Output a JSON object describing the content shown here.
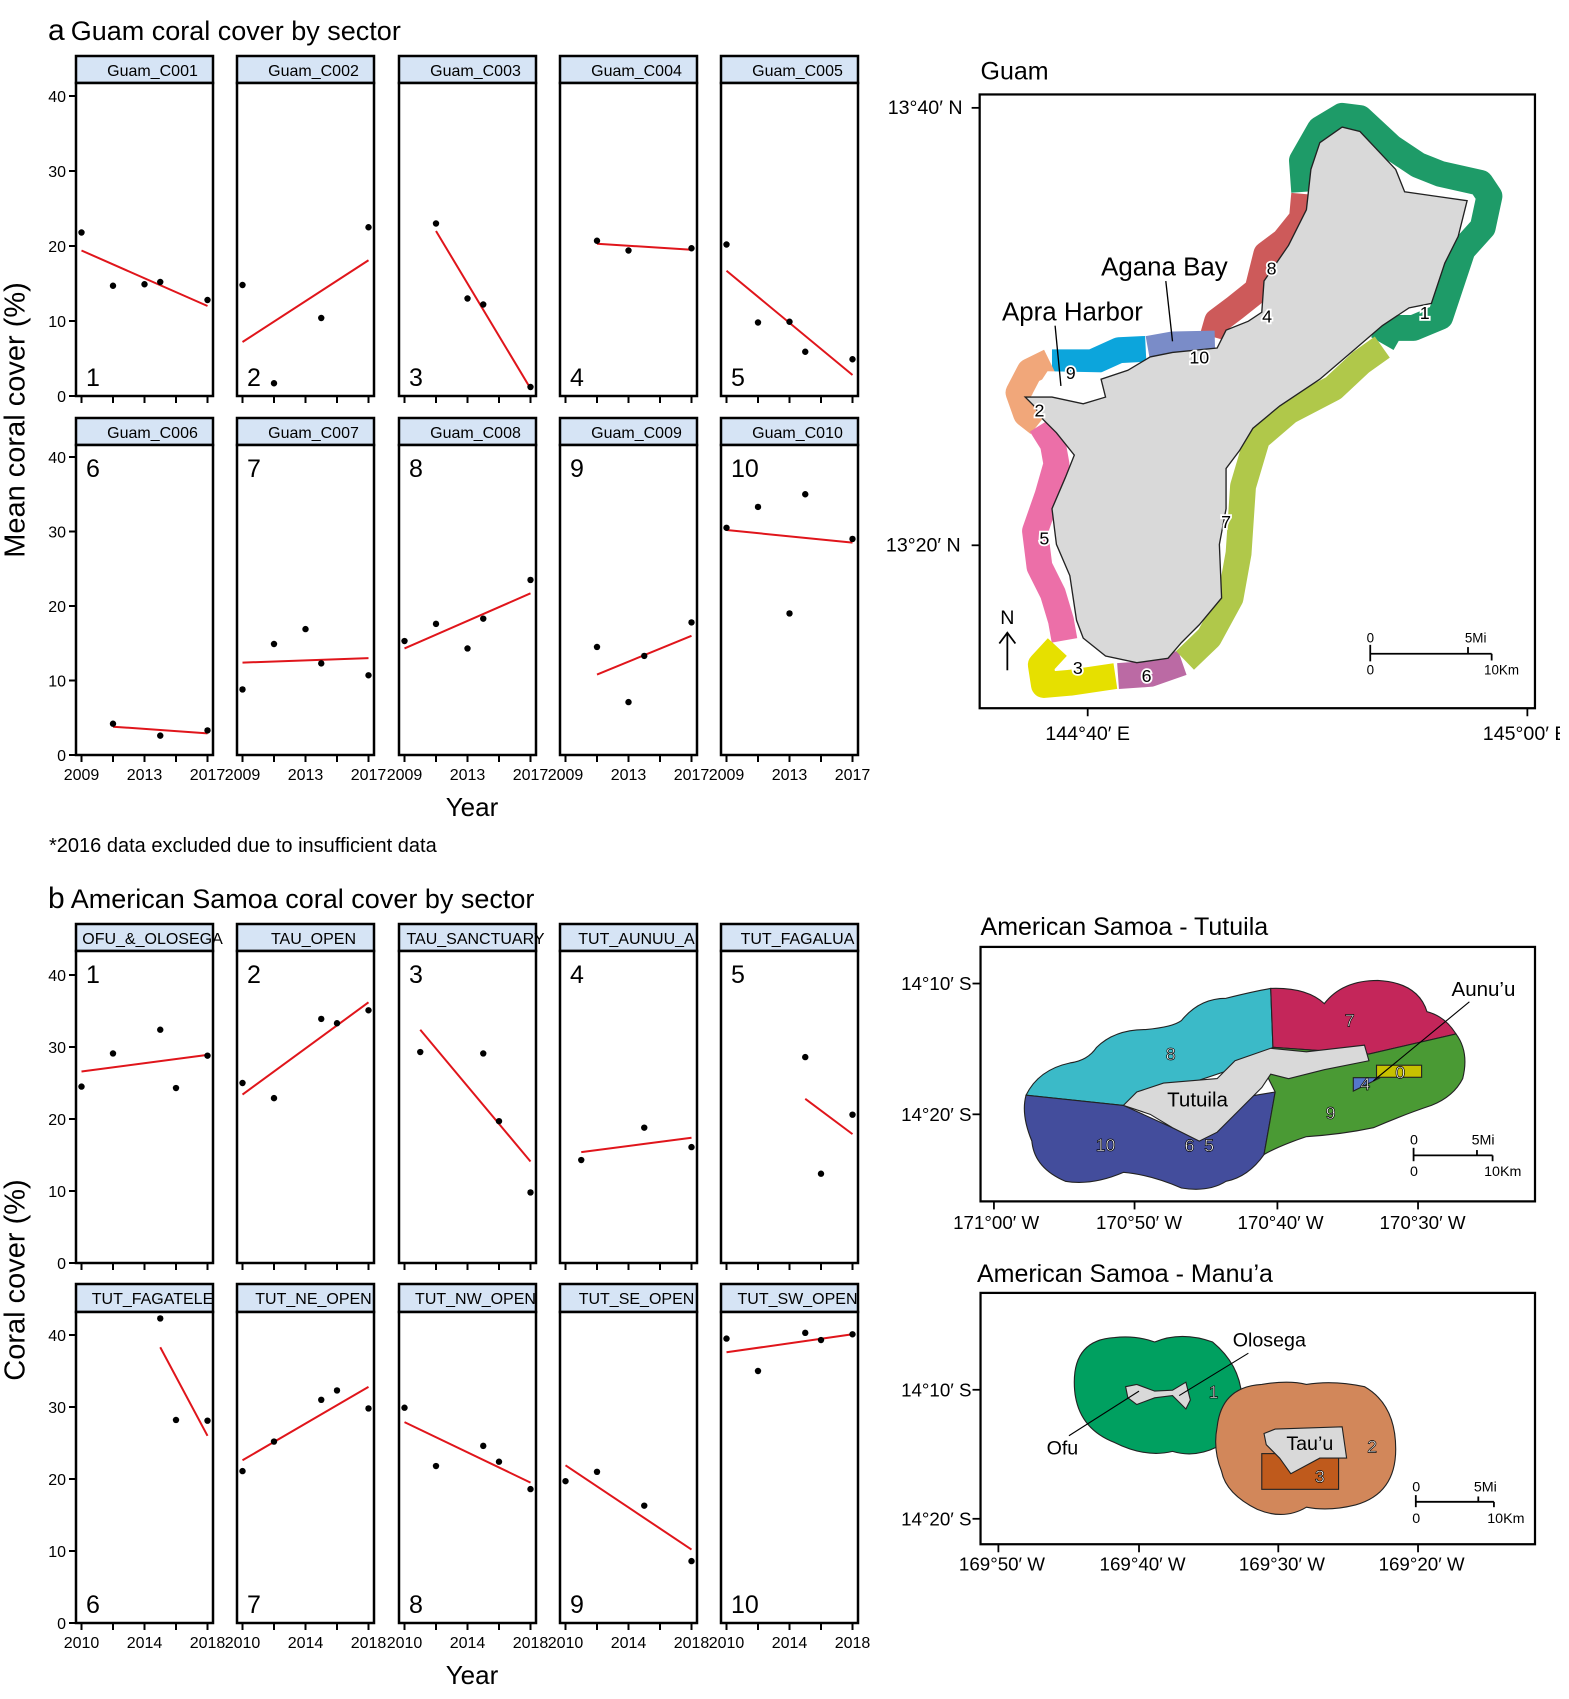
{
  "panel_a": {
    "letter": "a",
    "title": "Guam coral cover by sector",
    "ylabel": "Mean coral cover (%)",
    "xlabel": "Year",
    "footnote": "*2016 data excluded due to insufficient data"
  },
  "panel_b": {
    "letter": "b",
    "title": "American Samoa coral cover by sector",
    "ylabel": "Coral cover (%)",
    "xlabel": "Year"
  },
  "colors": {
    "strip": "#d6e4f5",
    "trend": "#e0151b",
    "point": "#000000"
  },
  "chart_data": [
    {
      "type": "scatter",
      "title": "Guam coral cover by sector",
      "xlabel": "Year",
      "ylabel": "Mean coral cover (%)",
      "xlim": [
        2009,
        2017
      ],
      "ylim": [
        0,
        40
      ],
      "xticks": [
        2009,
        2011,
        2013,
        2015,
        2017
      ],
      "xtick_labels": [
        "2009",
        "2013",
        "2017"
      ],
      "yticks": [
        0,
        10,
        20,
        30,
        40
      ],
      "panels": [
        {
          "strip": "Guam_C001",
          "label": "1",
          "x": [
            2009,
            2011,
            2013,
            2014,
            2017
          ],
          "y": [
            21.8,
            14.7,
            14.9,
            15.2,
            12.8
          ],
          "trend": {
            "x": [
              2009,
              2017
            ],
            "y": [
              19.4,
              12.0
            ]
          }
        },
        {
          "strip": "Guam_C002",
          "label": "2",
          "x": [
            2009,
            2011,
            2014,
            2017
          ],
          "y": [
            14.8,
            1.7,
            10.4,
            22.5
          ],
          "trend": {
            "x": [
              2009,
              2017
            ],
            "y": [
              7.2,
              18.1
            ]
          }
        },
        {
          "strip": "Guam_C003",
          "label": "3",
          "x": [
            2011,
            2013,
            2014,
            2017
          ],
          "y": [
            23.0,
            13.0,
            12.2,
            1.2
          ],
          "trend": {
            "x": [
              2011,
              2017
            ],
            "y": [
              22.0,
              1.0
            ]
          }
        },
        {
          "strip": "Guam_C004",
          "label": "4",
          "x": [
            2011,
            2013,
            2017
          ],
          "y": [
            20.7,
            19.4,
            19.7
          ],
          "trend": {
            "x": [
              2011,
              2017
            ],
            "y": [
              20.3,
              19.5
            ]
          }
        },
        {
          "strip": "Guam_C005",
          "label": "5",
          "x": [
            2009,
            2011,
            2013,
            2014,
            2017
          ],
          "y": [
            20.2,
            9.8,
            9.9,
            5.9,
            4.9
          ],
          "trend": {
            "x": [
              2009,
              2017
            ],
            "y": [
              16.7,
              2.8
            ]
          }
        },
        {
          "strip": "Guam_C006",
          "label": "6",
          "x": [
            2011,
            2014,
            2017
          ],
          "y": [
            4.2,
            2.6,
            3.3
          ],
          "trend": {
            "x": [
              2011,
              2017
            ],
            "y": [
              3.8,
              2.9
            ]
          }
        },
        {
          "strip": "Guam_C007",
          "label": "7",
          "x": [
            2009,
            2011,
            2013,
            2014,
            2017
          ],
          "y": [
            8.8,
            14.9,
            16.9,
            12.3,
            10.7
          ],
          "trend": {
            "x": [
              2009,
              2017
            ],
            "y": [
              12.4,
              13.0
            ]
          }
        },
        {
          "strip": "Guam_C008",
          "label": "8",
          "x": [
            2009,
            2011,
            2013,
            2014,
            2017
          ],
          "y": [
            15.3,
            17.6,
            14.3,
            18.3,
            23.5
          ],
          "trend": {
            "x": [
              2009,
              2017
            ],
            "y": [
              14.3,
              21.7
            ]
          }
        },
        {
          "strip": "Guam_C009",
          "label": "9",
          "x": [
            2011,
            2013,
            2014,
            2017
          ],
          "y": [
            14.5,
            7.1,
            13.3,
            17.8
          ],
          "trend": {
            "x": [
              2011,
              2017
            ],
            "y": [
              10.8,
              16.0
            ]
          }
        },
        {
          "strip": "Guam_C010",
          "label": "10",
          "x": [
            2009,
            2011,
            2013,
            2014,
            2017
          ],
          "y": [
            30.5,
            33.3,
            19.0,
            35.0,
            29.0
          ],
          "trend": {
            "x": [
              2009,
              2017
            ],
            "y": [
              30.2,
              28.5
            ]
          }
        }
      ]
    },
    {
      "type": "scatter",
      "title": "American Samoa coral cover by sector",
      "xlabel": "Year",
      "ylabel": "Coral cover (%)",
      "xlim": [
        2010,
        2018
      ],
      "ylim": [
        0,
        40
      ],
      "xticks": [
        2010,
        2012,
        2014,
        2016,
        2018
      ],
      "xtick_labels": [
        "2010",
        "2014",
        "2018"
      ],
      "yticks": [
        0,
        10,
        20,
        30,
        40
      ],
      "panels": [
        {
          "strip": "OFU_&_OLOSEGA",
          "label": "1",
          "x": [
            2010,
            2012,
            2015,
            2016,
            2018
          ],
          "y": [
            24.5,
            29.1,
            32.4,
            24.3,
            28.8
          ],
          "trend": {
            "x": [
              2010,
              2018
            ],
            "y": [
              26.6,
              28.9
            ]
          }
        },
        {
          "strip": "TAU_OPEN",
          "label": "2",
          "x": [
            2010,
            2012,
            2015,
            2016,
            2018
          ],
          "y": [
            25.0,
            22.9,
            33.9,
            33.3,
            35.1
          ],
          "trend": {
            "x": [
              2010,
              2018
            ],
            "y": [
              23.4,
              36.2
            ]
          }
        },
        {
          "strip": "TAU_SANCTUARY",
          "label": "3",
          "x": [
            2011,
            2015,
            2016,
            2018
          ],
          "y": [
            29.3,
            29.1,
            19.7,
            9.8
          ],
          "trend": {
            "x": [
              2011,
              2018
            ],
            "y": [
              32.4,
              14.1
            ]
          }
        },
        {
          "strip": "TUT_AUNUU_A",
          "label": "4",
          "x": [
            2011,
            2015,
            2018
          ],
          "y": [
            14.3,
            18.8,
            16.1
          ],
          "trend": {
            "x": [
              2011,
              2018
            ],
            "y": [
              15.4,
              17.4
            ]
          }
        },
        {
          "strip": "TUT_FAGALUA",
          "label": "5",
          "x": [
            2015,
            2016,
            2018
          ],
          "y": [
            28.6,
            12.4,
            20.6
          ],
          "trend": {
            "x": [
              2015,
              2018
            ],
            "y": [
              22.8,
              17.9
            ]
          }
        },
        {
          "strip": "TUT_FAGATELE",
          "label": "6",
          "x": [
            2015,
            2016,
            2018
          ],
          "y": [
            42.3,
            28.2,
            28.1
          ],
          "trend": {
            "x": [
              2015,
              2018
            ],
            "y": [
              38.3,
              26.0
            ]
          }
        },
        {
          "strip": "TUT_NE_OPEN",
          "label": "7",
          "x": [
            2010,
            2012,
            2015,
            2016,
            2018
          ],
          "y": [
            21.1,
            25.2,
            31.0,
            32.3,
            29.8
          ],
          "trend": {
            "x": [
              2010,
              2018
            ],
            "y": [
              22.6,
              32.8
            ]
          }
        },
        {
          "strip": "TUT_NW_OPEN",
          "label": "8",
          "x": [
            2010,
            2012,
            2015,
            2016,
            2018
          ],
          "y": [
            29.9,
            21.8,
            24.6,
            22.4,
            18.6
          ],
          "trend": {
            "x": [
              2010,
              2018
            ],
            "y": [
              27.9,
              19.5
            ]
          }
        },
        {
          "strip": "TUT_SE_OPEN",
          "label": "9",
          "x": [
            2010,
            2012,
            2015,
            2018
          ],
          "y": [
            19.7,
            21.0,
            16.3,
            8.6
          ],
          "trend": {
            "x": [
              2010,
              2018
            ],
            "y": [
              21.9,
              10.2
            ]
          }
        },
        {
          "strip": "TUT_SW_OPEN",
          "label": "10",
          "x": [
            2010,
            2012,
            2015,
            2016,
            2018
          ],
          "y": [
            39.5,
            35.0,
            40.3,
            39.3,
            40.1
          ],
          "trend": {
            "x": [
              2010,
              2018
            ],
            "y": [
              37.6,
              40.1
            ]
          }
        }
      ]
    }
  ],
  "maps": {
    "guam": {
      "title": "Guam",
      "lat": [
        "13°40′ N",
        "13°20′ N"
      ],
      "lon": [
        "144°40′ E",
        "145°00′ E"
      ],
      "places": {
        "agana": "Agana Bay",
        "apra": "Apra Harbor"
      },
      "north": "N",
      "scale": {
        "mi0": "0",
        "mi": "5Mi",
        "km0": "0",
        "km": "10Km"
      },
      "sectors": [
        "1",
        "2",
        "3",
        "4",
        "5",
        "6",
        "7",
        "8",
        "9",
        "10"
      ],
      "sector_colors": {
        "1": "#1e9b68",
        "2": "#f1a77a",
        "3": "#e6e000",
        "4": "#c8c800",
        "5": "#ec6fa8",
        "6": "#bb6aa4",
        "7": "#b0c84a",
        "8": "#cd5a5a",
        "9": "#0ca5dc",
        "10": "#7a8cc8"
      }
    },
    "tutuila": {
      "title": "American Samoa - Tutuila",
      "lat": [
        "14°10′ S",
        "14°20′ S"
      ],
      "lon": [
        "171°00′ W",
        "170°50′ W",
        "170°40′ W",
        "170°30′ W"
      ],
      "places": {
        "island": "Tutuila",
        "aunuu": "Aunu’u"
      },
      "scale": {
        "mi0": "0",
        "mi": "5Mi",
        "km0": "0",
        "km": "10Km"
      },
      "sectors": [
        "0",
        "4",
        "5",
        "6",
        "7",
        "8",
        "9",
        "10"
      ],
      "sector_colors": {
        "7": "#c4265a",
        "8": "#3bbac8",
        "9": "#4a9a34",
        "10": "#434d9c",
        "0": "#c7c100",
        "4": "#5577cc"
      }
    },
    "manua": {
      "title": "American Samoa - Manu’a",
      "lat": [
        "14°10′ S",
        "14°20′ S"
      ],
      "lon": [
        "169°50′ W",
        "169°40′ W",
        "169°30′ W",
        "169°20′ W"
      ],
      "places": {
        "olosega": "Olosega",
        "ofu": "Ofu",
        "tau": "Tau’u"
      },
      "scale": {
        "mi0": "0",
        "mi": "5Mi",
        "km0": "0",
        "km": "10Km"
      },
      "sectors": [
        "1",
        "2",
        "3"
      ],
      "sector_colors": {
        "1": "#00a060",
        "2": "#d2875a",
        "3": "#bf5a1c"
      }
    }
  }
}
